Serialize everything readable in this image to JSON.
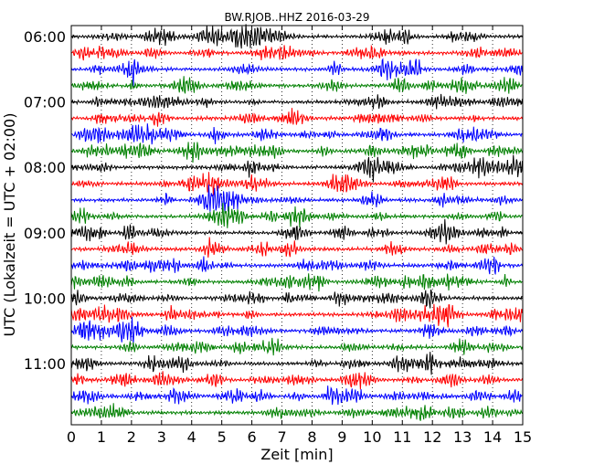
{
  "chart_data": {
    "type": "line",
    "title": "BW.RJOB..HHZ 2016-03-29",
    "xlabel": "Zeit  [min]",
    "ylabel": "UTC (Lokalzeit = UTC + 02:00)",
    "xlim": [
      0,
      15
    ],
    "x_ticks": [
      "0",
      "1",
      "2",
      "3",
      "4",
      "5",
      "6",
      "7",
      "8",
      "9",
      "10",
      "11",
      "12",
      "13",
      "14",
      "15"
    ],
    "y_ticks": [
      "06:00",
      "07:00",
      "08:00",
      "09:00",
      "10:00",
      "11:00"
    ],
    "grid": "vertical-dotted",
    "trace_count": 24,
    "trace_interval_minutes": 15,
    "start_time": "06:00",
    "colors": [
      "#000000",
      "#ff0000",
      "#0000ff",
      "#008000"
    ]
  }
}
